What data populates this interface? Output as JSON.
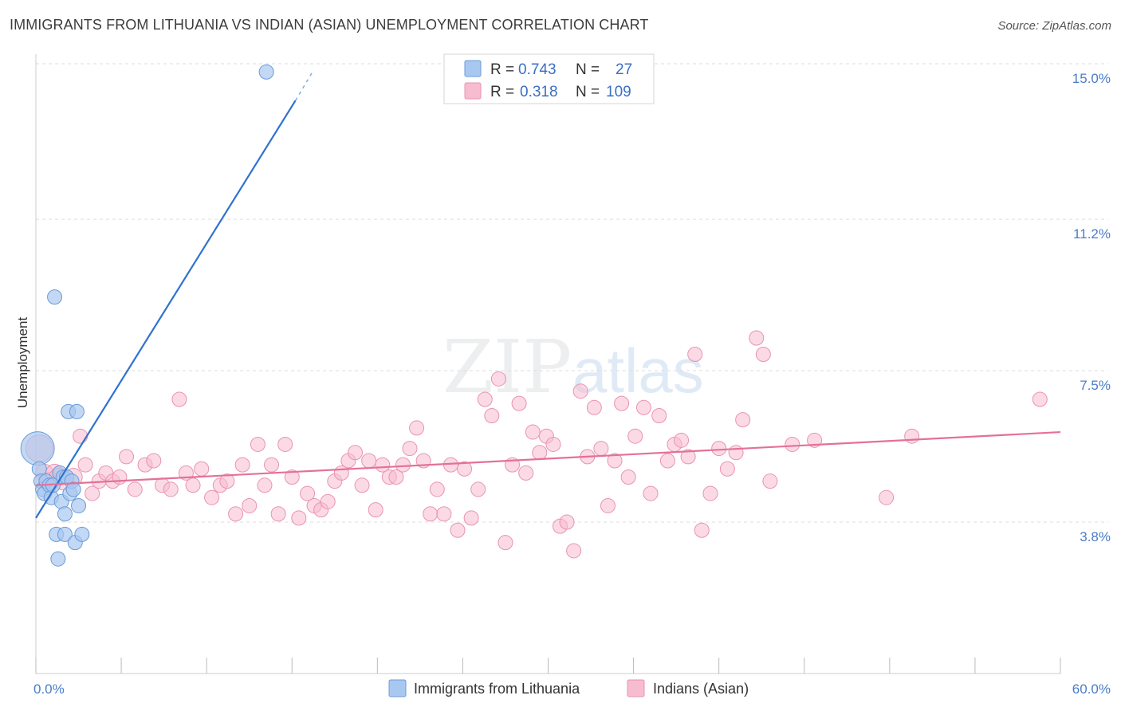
{
  "title": "IMMIGRANTS FROM LITHUANIA VS INDIAN (ASIAN) UNEMPLOYMENT CORRELATION CHART",
  "source": "Source: ZipAtlas.com",
  "watermark": {
    "zip": "ZIP",
    "atlas": "atlas"
  },
  "colors": {
    "blue_fill": "#a9c8f0",
    "blue_stroke": "#6a9bd8",
    "blue_line": "#2f72d0",
    "pink_fill": "#f7bcd0",
    "pink_stroke": "#e993b1",
    "pink_line": "#e4709a",
    "grid": "#dddddd",
    "tick_text": "#4a7cc9"
  },
  "chart_data": {
    "type": "scatter",
    "title": "IMMIGRANTS FROM LITHUANIA VS INDIAN (ASIAN) UNEMPLOYMENT CORRELATION CHART",
    "xlabel": "",
    "ylabel": "Unemployment",
    "xlim": [
      0,
      60
    ],
    "ylim": [
      0,
      15.5
    ],
    "x_tick_labels": [
      "0.0%",
      "60.0%"
    ],
    "y_ticks": [
      {
        "value": 3.8,
        "label": "3.8%"
      },
      {
        "value": 7.5,
        "label": "7.5%"
      },
      {
        "value": 11.2,
        "label": "11.2%"
      },
      {
        "value": 15.0,
        "label": "15.0%"
      }
    ],
    "legend": [
      {
        "series": "Immigrants from Lithuania",
        "r_label": "R =",
        "r": "0.743",
        "n_label": "N =",
        "n": "27"
      },
      {
        "series": "Indians (Asian)",
        "r_label": "R =",
        "r": "0.318",
        "n_label": "N =",
        "n": "109"
      }
    ],
    "series": [
      {
        "name": "Immigrants from Lithuania",
        "trend": {
          "x0": 0,
          "y0": 3.9,
          "x1": 15.2,
          "y1": 14.1,
          "dash_to_x": 16.2,
          "dash_to_y": 14.8
        },
        "points": [
          [
            0.1,
            5.6,
            22
          ],
          [
            0.2,
            5.1,
            10
          ],
          [
            0.3,
            4.8,
            10
          ],
          [
            0.4,
            4.6,
            10
          ],
          [
            0.5,
            4.5,
            10
          ],
          [
            0.6,
            4.8,
            10
          ],
          [
            0.8,
            4.7,
            10
          ],
          [
            0.9,
            4.4,
            10
          ],
          [
            1.0,
            4.7,
            10
          ],
          [
            1.2,
            3.5,
            10
          ],
          [
            1.1,
            9.3,
            10
          ],
          [
            1.3,
            2.9,
            10
          ],
          [
            1.4,
            5.0,
            10
          ],
          [
            1.5,
            4.3,
            10
          ],
          [
            1.6,
            4.9,
            10
          ],
          [
            1.7,
            4.0,
            10
          ],
          [
            1.7,
            3.5,
            10
          ],
          [
            1.8,
            4.9,
            10
          ],
          [
            1.9,
            6.5,
            10
          ],
          [
            2.0,
            4.5,
            10
          ],
          [
            2.1,
            4.8,
            10
          ],
          [
            2.2,
            4.6,
            10
          ],
          [
            2.3,
            3.3,
            10
          ],
          [
            2.4,
            6.5,
            10
          ],
          [
            2.5,
            4.2,
            10
          ],
          [
            2.7,
            3.5,
            10
          ],
          [
            13.5,
            14.8,
            10
          ]
        ]
      },
      {
        "name": "Indians (Asian)",
        "trend": {
          "x0": 0,
          "y0": 4.7,
          "x1": 60,
          "y1": 6.0
        },
        "points": [
          [
            0.2,
            5.6,
            18
          ],
          [
            0.5,
            5.0,
            12
          ],
          [
            0.8,
            4.8,
            12
          ],
          [
            1.1,
            5.0,
            12
          ],
          [
            1.3,
            4.9,
            12
          ],
          [
            1.6,
            4.8,
            12
          ],
          [
            2.2,
            4.9,
            12
          ],
          [
            2.6,
            5.9,
            10
          ],
          [
            2.9,
            5.2,
            10
          ],
          [
            3.3,
            4.5,
            10
          ],
          [
            3.7,
            4.8,
            10
          ],
          [
            4.1,
            5.0,
            10
          ],
          [
            4.5,
            4.8,
            10
          ],
          [
            4.9,
            4.9,
            10
          ],
          [
            5.3,
            5.4,
            10
          ],
          [
            5.8,
            4.6,
            10
          ],
          [
            6.4,
            5.2,
            10
          ],
          [
            6.9,
            5.3,
            10
          ],
          [
            7.4,
            4.7,
            10
          ],
          [
            7.9,
            4.6,
            10
          ],
          [
            8.4,
            6.8,
            10
          ],
          [
            8.8,
            5.0,
            10
          ],
          [
            9.2,
            4.7,
            10
          ],
          [
            9.7,
            5.1,
            10
          ],
          [
            10.3,
            4.4,
            10
          ],
          [
            10.8,
            4.7,
            10
          ],
          [
            11.2,
            4.8,
            10
          ],
          [
            11.7,
            4.0,
            10
          ],
          [
            12.1,
            5.2,
            10
          ],
          [
            12.5,
            4.2,
            10
          ],
          [
            13.0,
            5.7,
            10
          ],
          [
            13.4,
            4.7,
            10
          ],
          [
            13.8,
            5.2,
            10
          ],
          [
            14.2,
            4.0,
            10
          ],
          [
            14.6,
            5.7,
            10
          ],
          [
            15.0,
            4.9,
            10
          ],
          [
            15.4,
            3.9,
            10
          ],
          [
            15.9,
            4.5,
            10
          ],
          [
            16.3,
            4.2,
            10
          ],
          [
            16.7,
            4.1,
            10
          ],
          [
            17.1,
            4.3,
            10
          ],
          [
            17.5,
            4.8,
            10
          ],
          [
            17.9,
            5.0,
            10
          ],
          [
            18.3,
            5.3,
            10
          ],
          [
            18.7,
            5.5,
            10
          ],
          [
            19.1,
            4.7,
            10
          ],
          [
            19.5,
            5.3,
            10
          ],
          [
            19.9,
            4.1,
            10
          ],
          [
            20.3,
            5.2,
            10
          ],
          [
            20.7,
            4.9,
            10
          ],
          [
            21.1,
            4.9,
            10
          ],
          [
            21.5,
            5.2,
            10
          ],
          [
            21.9,
            5.6,
            10
          ],
          [
            22.3,
            6.1,
            10
          ],
          [
            22.7,
            5.3,
            10
          ],
          [
            23.1,
            4.0,
            10
          ],
          [
            23.5,
            4.6,
            10
          ],
          [
            23.9,
            4.0,
            10
          ],
          [
            24.3,
            5.2,
            10
          ],
          [
            24.7,
            3.6,
            10
          ],
          [
            25.1,
            5.1,
            10
          ],
          [
            25.5,
            3.9,
            10
          ],
          [
            25.9,
            4.6,
            10
          ],
          [
            26.3,
            6.8,
            10
          ],
          [
            26.7,
            6.4,
            10
          ],
          [
            27.1,
            7.3,
            10
          ],
          [
            27.5,
            3.3,
            10
          ],
          [
            27.9,
            5.2,
            10
          ],
          [
            28.3,
            6.7,
            10
          ],
          [
            28.7,
            5.0,
            10
          ],
          [
            29.1,
            6.0,
            10
          ],
          [
            29.5,
            5.5,
            10
          ],
          [
            29.9,
            5.9,
            10
          ],
          [
            30.3,
            5.7,
            10
          ],
          [
            30.7,
            3.7,
            10
          ],
          [
            31.1,
            3.8,
            10
          ],
          [
            31.5,
            3.1,
            10
          ],
          [
            31.9,
            7.0,
            10
          ],
          [
            32.3,
            5.4,
            10
          ],
          [
            32.7,
            6.6,
            10
          ],
          [
            33.1,
            5.6,
            10
          ],
          [
            33.5,
            4.2,
            10
          ],
          [
            33.9,
            5.3,
            10
          ],
          [
            34.3,
            6.7,
            10
          ],
          [
            34.7,
            4.9,
            10
          ],
          [
            35.1,
            5.9,
            10
          ],
          [
            35.6,
            6.6,
            10
          ],
          [
            36.0,
            4.5,
            10
          ],
          [
            36.5,
            6.4,
            10
          ],
          [
            37.0,
            5.3,
            10
          ],
          [
            37.4,
            5.7,
            10
          ],
          [
            37.8,
            5.8,
            10
          ],
          [
            38.2,
            5.4,
            10
          ],
          [
            38.6,
            7.9,
            10
          ],
          [
            39.0,
            3.6,
            10
          ],
          [
            39.5,
            4.5,
            10
          ],
          [
            40.0,
            5.6,
            10
          ],
          [
            40.5,
            5.1,
            10
          ],
          [
            41.0,
            5.5,
            10
          ],
          [
            41.4,
            6.3,
            10
          ],
          [
            42.2,
            8.3,
            10
          ],
          [
            42.6,
            7.9,
            10
          ],
          [
            43.0,
            4.8,
            10
          ],
          [
            44.3,
            5.7,
            10
          ],
          [
            45.6,
            5.8,
            10
          ],
          [
            49.8,
            4.4,
            10
          ],
          [
            51.3,
            5.9,
            10
          ],
          [
            58.8,
            6.8,
            10
          ]
        ]
      }
    ]
  }
}
